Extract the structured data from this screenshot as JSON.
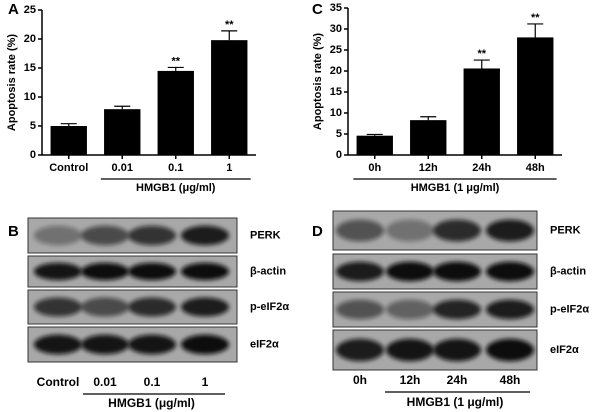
{
  "chart_data": [
    {
      "type": "bar",
      "panel": "A",
      "ylabel": "Apoptosis rate (%)",
      "xlabel": "HMGB1 (μg/ml)",
      "categories": [
        "Control",
        "0.01",
        "0.1",
        "1"
      ],
      "values": [
        5,
        7.9,
        14.5,
        19.8
      ],
      "errors": [
        0.4,
        0.5,
        0.6,
        1.6
      ],
      "annotations": [
        null,
        null,
        "**",
        "**"
      ],
      "color": "#000000",
      "ylim": [
        0,
        25
      ],
      "yticks": [
        0,
        5,
        10,
        15,
        20,
        25
      ]
    },
    {
      "type": "bar",
      "panel": "C",
      "ylabel": "Apoptosis rate (%)",
      "xlabel": "HMGB1 (1 μg/ml)",
      "categories": [
        "0h",
        "12h",
        "24h",
        "48h"
      ],
      "values": [
        4.6,
        8.3,
        20.6,
        28
      ],
      "errors": [
        0.3,
        0.8,
        2,
        3.2
      ],
      "annotations": [
        null,
        null,
        "**",
        "**"
      ],
      "color": "#000000",
      "ylim": [
        0,
        35
      ],
      "yticks": [
        0,
        5,
        10,
        15,
        20,
        25,
        30,
        35
      ]
    }
  ],
  "blots": [
    {
      "panel": "B",
      "rows": [
        "PERK",
        "β-actin",
        "p-eIF2α",
        "eIF2α"
      ],
      "lanes": [
        "Control",
        "0.01",
        "0.1",
        "1"
      ],
      "xlabel": "HMGB1 (μg/ml)"
    },
    {
      "panel": "D",
      "rows": [
        "PERK",
        "β-actin",
        "p-eIF2α",
        "eIF2α"
      ],
      "lanes": [
        "0h",
        "12h",
        "24h",
        "48h"
      ],
      "xlabel": "HMGB1 (1 μg/ml)"
    }
  ]
}
